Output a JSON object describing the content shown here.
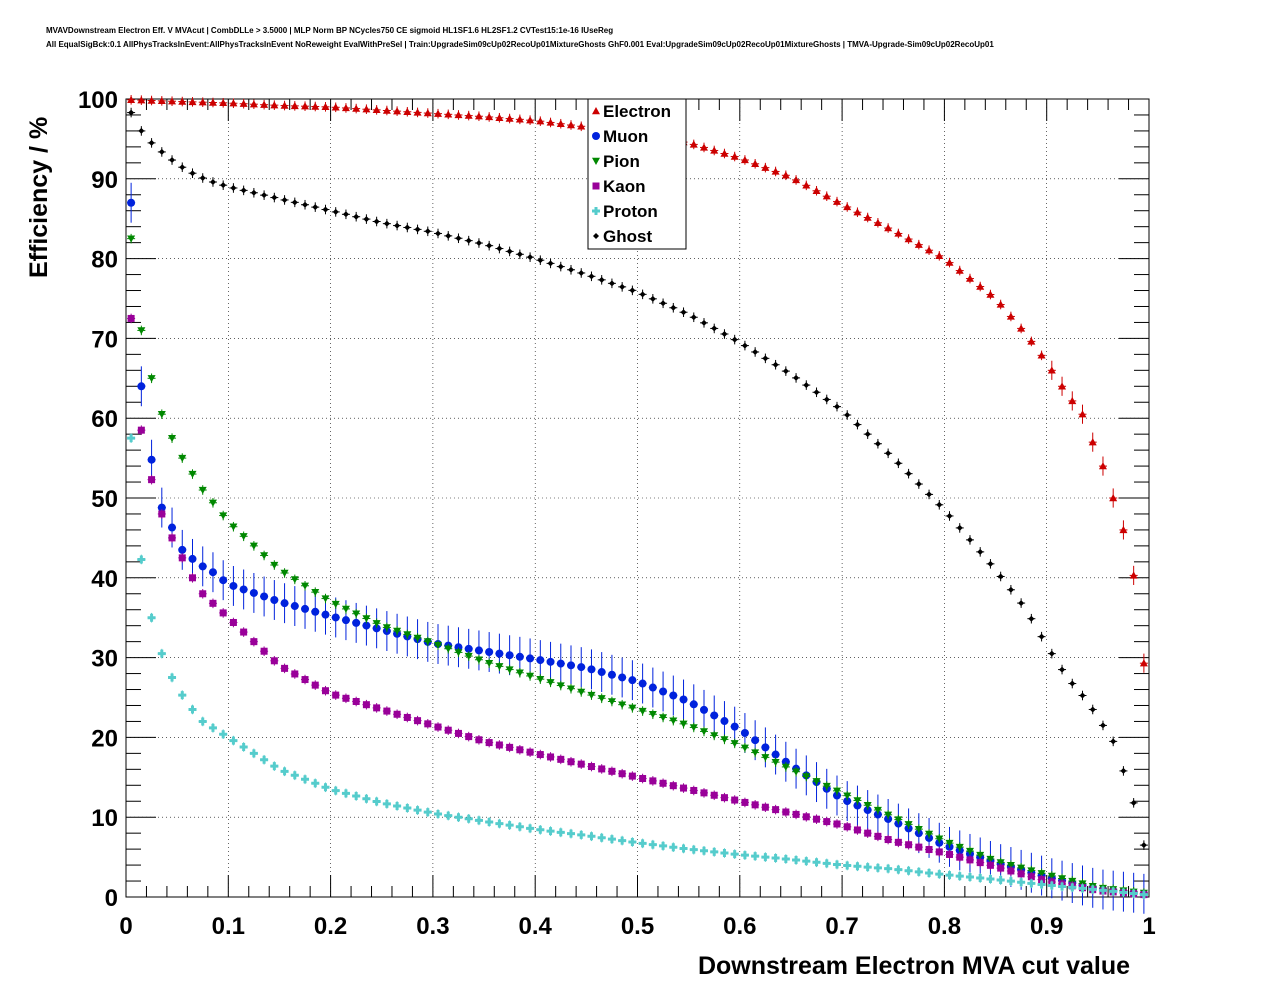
{
  "chart_data": {
    "type": "scatter",
    "title_line1": "MVAVDownstream Electron Eff. V MVAcut | CombDLLe > 3.5000 | MLP Norm BP NCycles750 CE sigmoid HL1SF1.6 HL2SF1.2 CVTest15:1e-16 IUseReg",
    "title_line2": "All EqualSigBck:0.1 AllPhysTracksInEvent:AllPhysTracksInEvent NoReweight EvalWithPreSel | Train:UpgradeSim09cUp02RecoUp01MixtureGhosts GhF0.001 Eval:UpgradeSim09cUp02RecoUp01MixtureGhosts | TMVA-Upgrade-Sim09cUp02RecoUp01",
    "xlabel": "Downstream Electron MVA cut value",
    "ylabel": "Efficiency / %",
    "xlim": [
      0,
      1
    ],
    "ylim": [
      0,
      100
    ],
    "xticks": [
      "0",
      "0.1",
      "0.2",
      "0.3",
      "0.4",
      "0.5",
      "0.6",
      "0.7",
      "0.8",
      "0.9",
      "1"
    ],
    "yticks": [
      "0",
      "10",
      "20",
      "30",
      "40",
      "50",
      "60",
      "70",
      "80",
      "90",
      "100"
    ],
    "grid": true,
    "legend_position": "top-center",
    "series": [
      {
        "name": "Electron",
        "color": "#cc0000",
        "marker": "triangle-up",
        "x": [
          0.005,
          0.05,
          0.1,
          0.15,
          0.2,
          0.25,
          0.3,
          0.35,
          0.4,
          0.45,
          0.5,
          0.55,
          0.6,
          0.65,
          0.7,
          0.75,
          0.8,
          0.85,
          0.88,
          0.9,
          0.92,
          0.935,
          0.945,
          0.955,
          0.965,
          0.975,
          0.985,
          0.995
        ],
        "y": [
          99.9,
          99.7,
          99.5,
          99.2,
          99.0,
          98.6,
          98.2,
          97.8,
          97.3,
          96.5,
          95.5,
          94.5,
          92.6,
          90.2,
          86.8,
          83.5,
          80.0,
          75.0,
          70.5,
          67.0,
          63.0,
          60.5,
          57.0,
          54.0,
          50.0,
          46.0,
          40.3,
          29.3
        ]
      },
      {
        "name": "Muon",
        "color": "#0022dd",
        "marker": "circle",
        "x": [
          0.005,
          0.015,
          0.025,
          0.035,
          0.045,
          0.055,
          0.07,
          0.085,
          0.1,
          0.15,
          0.2,
          0.25,
          0.3,
          0.35,
          0.4,
          0.45,
          0.5,
          0.55,
          0.6,
          0.65,
          0.7,
          0.75,
          0.8,
          0.85,
          0.9,
          0.95,
          0.995
        ],
        "y": [
          87.0,
          64.0,
          54.8,
          48.8,
          46.3,
          43.5,
          41.8,
          40.7,
          39.2,
          37.0,
          35.2,
          33.5,
          31.8,
          30.8,
          29.8,
          28.7,
          27.0,
          24.5,
          21.0,
          16.5,
          12.3,
          9.5,
          6.5,
          4.3,
          2.5,
          1.0,
          0.4
        ]
      },
      {
        "name": "Pion",
        "color": "#008800",
        "marker": "triangle-down",
        "x": [
          0.005,
          0.015,
          0.025,
          0.035,
          0.045,
          0.055,
          0.075,
          0.1,
          0.15,
          0.2,
          0.25,
          0.3,
          0.35,
          0.4,
          0.45,
          0.5,
          0.55,
          0.6,
          0.65,
          0.7,
          0.75,
          0.8,
          0.85,
          0.9,
          0.95,
          0.995
        ],
        "y": [
          82.5,
          71.0,
          65.0,
          60.5,
          57.5,
          55.0,
          51.0,
          47.0,
          41.0,
          37.0,
          34.0,
          31.8,
          29.5,
          27.5,
          25.5,
          23.5,
          21.5,
          19.0,
          16.0,
          13.0,
          10.0,
          7.0,
          4.5,
          2.8,
          1.2,
          0.5
        ]
      },
      {
        "name": "Kaon",
        "color": "#990099",
        "marker": "square",
        "x": [
          0.005,
          0.015,
          0.025,
          0.035,
          0.045,
          0.055,
          0.065,
          0.075,
          0.1,
          0.15,
          0.2,
          0.25,
          0.3,
          0.35,
          0.4,
          0.45,
          0.5,
          0.55,
          0.6,
          0.65,
          0.7,
          0.75,
          0.8,
          0.85,
          0.9,
          0.95,
          0.995
        ],
        "y": [
          72.5,
          58.5,
          52.3,
          48.0,
          45.0,
          42.5,
          40.0,
          38.0,
          35.0,
          29.0,
          25.5,
          23.5,
          21.5,
          19.5,
          18.0,
          16.5,
          15.0,
          13.5,
          12.0,
          10.5,
          9.0,
          7.0,
          5.5,
          3.8,
          2.0,
          0.8,
          0.3
        ]
      },
      {
        "name": "Proton",
        "color": "#55cccc",
        "marker": "cross",
        "x": [
          0.005,
          0.015,
          0.025,
          0.035,
          0.045,
          0.055,
          0.065,
          0.075,
          0.1,
          0.15,
          0.2,
          0.25,
          0.3,
          0.35,
          0.4,
          0.45,
          0.5,
          0.55,
          0.6,
          0.65,
          0.7,
          0.75,
          0.8,
          0.85,
          0.9,
          0.95,
          0.995
        ],
        "y": [
          57.5,
          42.3,
          35.0,
          30.5,
          27.5,
          25.3,
          23.5,
          22.0,
          20.0,
          16.0,
          13.5,
          11.8,
          10.5,
          9.5,
          8.5,
          7.7,
          6.8,
          6.0,
          5.3,
          4.7,
          4.0,
          3.5,
          2.8,
          2.2,
          1.5,
          0.9,
          0.3
        ]
      },
      {
        "name": "Ghost",
        "color": "#000000",
        "marker": "diamond",
        "x": [
          0.005,
          0.015,
          0.025,
          0.04,
          0.06,
          0.08,
          0.1,
          0.15,
          0.2,
          0.25,
          0.3,
          0.35,
          0.4,
          0.45,
          0.5,
          0.55,
          0.6,
          0.65,
          0.7,
          0.75,
          0.8,
          0.85,
          0.88,
          0.9,
          0.92,
          0.94,
          0.955,
          0.965,
          0.975,
          0.985,
          0.995
        ],
        "y": [
          98.3,
          96.0,
          94.5,
          92.8,
          91.0,
          89.8,
          89.0,
          87.5,
          86.0,
          84.5,
          83.3,
          81.8,
          80.0,
          78.0,
          75.8,
          73.0,
          69.5,
          65.5,
          61.0,
          55.0,
          48.5,
          41.0,
          36.0,
          31.5,
          27.5,
          24.5,
          21.5,
          19.5,
          15.8,
          11.8,
          6.5
        ]
      }
    ]
  }
}
